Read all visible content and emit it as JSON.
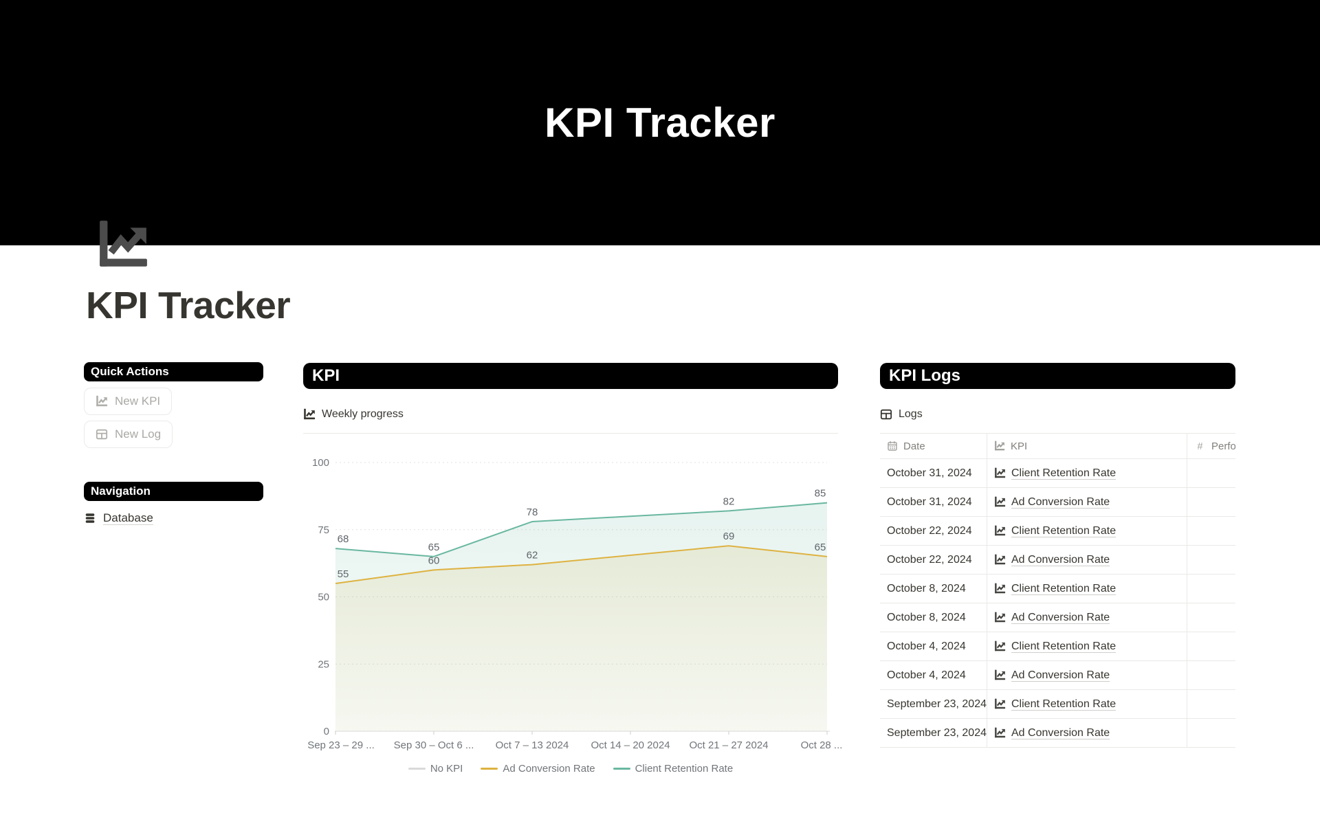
{
  "banner": {
    "title": "KPI Tracker"
  },
  "page": {
    "title": "KPI Tracker",
    "icon": "chart-line-icon"
  },
  "colors": {
    "pill_bg": "#000000",
    "text_dark": "#37352f",
    "text_gray": "#787774",
    "border": "#e9e9e7",
    "amber": "#deb240",
    "teal": "#69b7a0",
    "no_kpi_gray": "#d9d9d9"
  },
  "sidebar": {
    "quick_actions": {
      "header": "Quick Actions",
      "buttons": [
        {
          "label": "New KPI",
          "icon": "chart-line-icon"
        },
        {
          "label": "New Log",
          "icon": "table-icon"
        }
      ]
    },
    "navigation": {
      "header": "Navigation",
      "items": [
        {
          "label": "Database",
          "icon": "database-icon"
        }
      ]
    }
  },
  "kpi_section": {
    "header": "KPI",
    "chart_title": "Weekly progress"
  },
  "chart_data": {
    "type": "line",
    "title": "Weekly progress",
    "categories": [
      "Sep 23 – 29 ...",
      "Sep 30 – Oct 6 ...",
      "Oct 7 – 13 2024",
      "Oct 14 – 20 2024",
      "Oct 21 – 27 2024",
      "Oct 28 ..."
    ],
    "series": [
      {
        "name": "No KPI",
        "color": "#d9d9d9",
        "values": [
          null,
          null,
          null,
          null,
          null,
          null
        ]
      },
      {
        "name": "Ad Conversion Rate",
        "color": "#deb240",
        "values": [
          55,
          60,
          62,
          null,
          69,
          65
        ]
      },
      {
        "name": "Client Retention Rate",
        "color": "#69b7a0",
        "values": [
          68,
          65,
          78,
          null,
          82,
          85
        ]
      }
    ],
    "ylim": [
      0,
      100
    ],
    "yticks": [
      0,
      25,
      50,
      75,
      100
    ],
    "grid": "dotted-horizontal",
    "legend_position": "bottom",
    "value_labels": true
  },
  "logs_section": {
    "header": "KPI Logs",
    "database_title": "Logs",
    "table": {
      "columns": [
        {
          "label": "Date",
          "icon": "calendar-icon"
        },
        {
          "label": "KPI",
          "icon": "chart-line-icon"
        },
        {
          "label": "Performance",
          "icon": "hash-icon"
        }
      ],
      "rows": [
        {
          "date": "October 31, 2024",
          "kpi": "Client Retention Rate",
          "performance": ""
        },
        {
          "date": "October 31, 2024",
          "kpi": "Ad Conversion Rate",
          "performance": ""
        },
        {
          "date": "October 22, 2024",
          "kpi": "Client Retention Rate",
          "performance": ""
        },
        {
          "date": "October 22, 2024",
          "kpi": "Ad Conversion Rate",
          "performance": ""
        },
        {
          "date": "October 8, 2024",
          "kpi": "Client Retention Rate",
          "performance": ""
        },
        {
          "date": "October 8, 2024",
          "kpi": "Ad Conversion Rate",
          "performance": ""
        },
        {
          "date": "October 4, 2024",
          "kpi": "Client Retention Rate",
          "performance": ""
        },
        {
          "date": "October 4, 2024",
          "kpi": "Ad Conversion Rate",
          "performance": ""
        },
        {
          "date": "September 23, 2024",
          "kpi": "Client Retention Rate",
          "performance": ""
        },
        {
          "date": "September 23, 2024",
          "kpi": "Ad Conversion Rate",
          "performance": ""
        }
      ]
    }
  }
}
